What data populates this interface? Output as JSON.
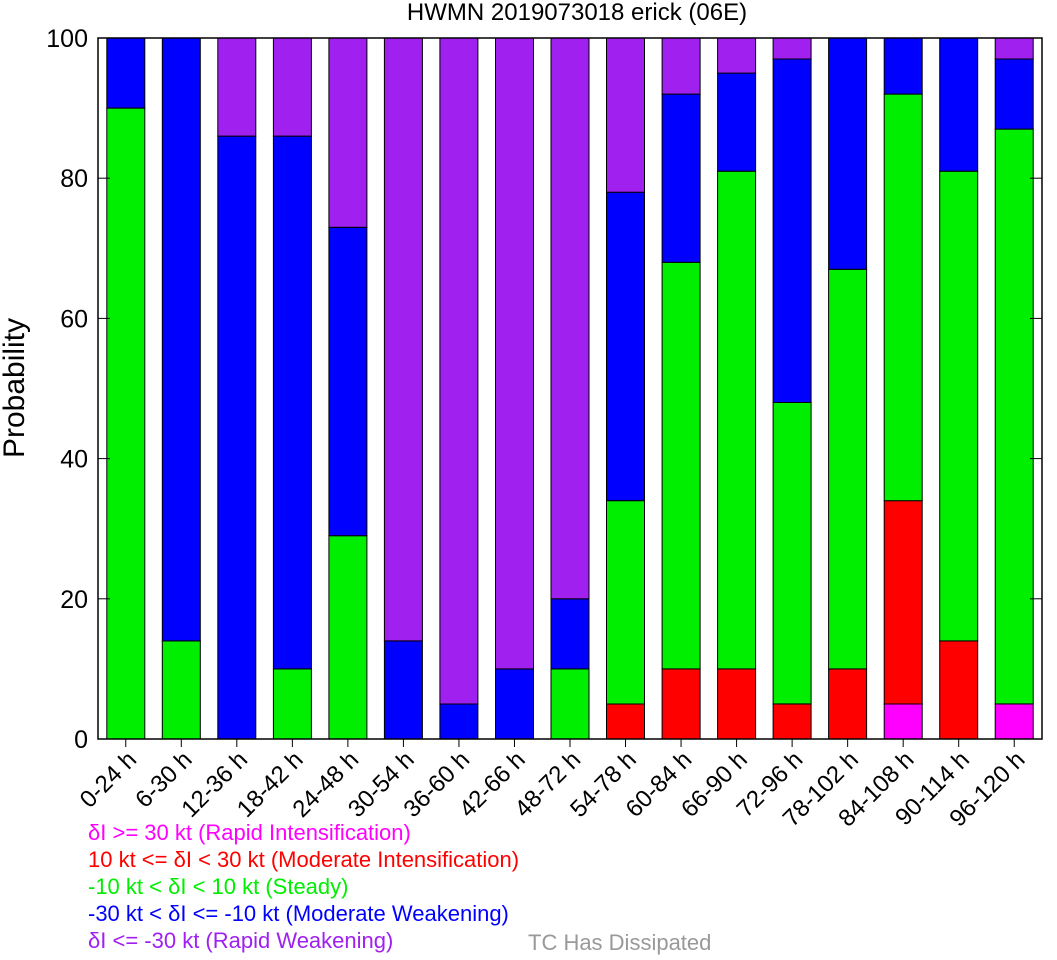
{
  "chart_data": {
    "type": "bar",
    "stacked": true,
    "title": "HWMN 2019073018 erick (06E)",
    "xlabel": "",
    "ylabel": "Probability",
    "ylim": [
      0,
      100
    ],
    "yticks": [
      0,
      20,
      40,
      60,
      80,
      100
    ],
    "categories": [
      "0-24 h",
      "6-30 h",
      "12-36 h",
      "18-42 h",
      "24-48 h",
      "30-54 h",
      "36-60 h",
      "42-66 h",
      "48-72 h",
      "54-78 h",
      "60-84 h",
      "66-90 h",
      "72-96 h",
      "78-102 h",
      "84-108 h",
      "90-114 h",
      "96-120 h"
    ],
    "series": [
      {
        "name": "δI >= 30 kt (Rapid Intensification)",
        "color": "#ff00ff",
        "values": [
          0,
          0,
          0,
          0,
          0,
          0,
          0,
          0,
          0,
          0,
          0,
          0,
          0,
          0,
          5,
          0,
          5
        ]
      },
      {
        "name": "10 kt <= δI < 30 kt (Moderate Intensification)",
        "color": "#ff0000",
        "values": [
          0,
          0,
          0,
          0,
          0,
          0,
          0,
          0,
          0,
          5,
          10,
          10,
          5,
          10,
          29,
          14,
          0
        ]
      },
      {
        "name": "-10 kt < δI < 10 kt (Steady)",
        "color": "#00ee00",
        "values": [
          90,
          14,
          0,
          10,
          29,
          0,
          0,
          0,
          10,
          29,
          58,
          71,
          43,
          57,
          58,
          67,
          82
        ]
      },
      {
        "name": "-30 kt < δI <= -10 kt (Moderate Weakening)",
        "color": "#0000ff",
        "values": [
          10,
          86,
          86,
          76,
          44,
          14,
          5,
          10,
          10,
          44,
          24,
          14,
          49,
          33,
          8,
          19,
          10
        ]
      },
      {
        "name": "δI <= -30 kt (Rapid Weakening)",
        "color": "#a020f0",
        "values": [
          0,
          0,
          14,
          14,
          27,
          86,
          95,
          90,
          80,
          22,
          8,
          5,
          3,
          0,
          0,
          0,
          3
        ]
      }
    ],
    "legend_extra": {
      "name": "TC Has Dissipated",
      "color": "#999999"
    }
  }
}
